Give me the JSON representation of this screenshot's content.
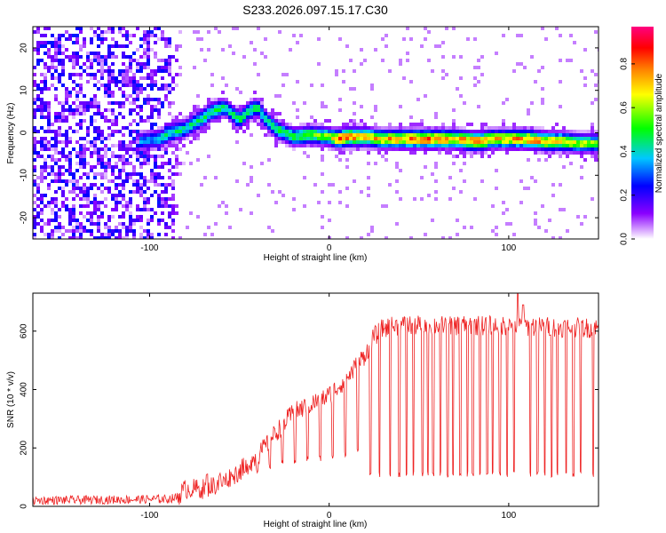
{
  "title": "S233.2026.097.15.17.C30",
  "chart_data": [
    {
      "type": "heatmap",
      "title": "S233.2026.097.15.17.C30",
      "xlabel": "Height of straight line (km)",
      "ylabel": "Frequency (Hz)",
      "xlim": [
        -165,
        150
      ],
      "ylim": [
        -25,
        25
      ],
      "xticks": [
        -100,
        0,
        100
      ],
      "yticks": [
        -20,
        -10,
        0,
        10,
        20
      ],
      "xtick_labels": [
        "-100",
        "0",
        "100"
      ],
      "ytick_labels": [
        "-20",
        "-10",
        "0",
        "10",
        "20"
      ],
      "colorbar": {
        "label": "Normalized spectral amplitude",
        "range": [
          0,
          0.97
        ],
        "ticks": [
          0.0,
          0.2,
          0.4,
          0.6,
          0.8
        ],
        "tick_labels": [
          "0.0",
          "0.2",
          "0.4",
          "0.6",
          "0.8"
        ],
        "colors": [
          "#ffffff",
          "#8a00ff",
          "#0000ff",
          "#00c8ff",
          "#00ff00",
          "#ffff00",
          "#ff8000",
          "#ff0000",
          "#ff0080"
        ]
      },
      "noise_region": {
        "x_end": -90,
        "fade_end": -80,
        "amplitude": 0.25
      },
      "ridge": {
        "x": [
          -105,
          -95,
          -88,
          -80,
          -72,
          -65,
          -58,
          -50,
          -45,
          -40,
          -35,
          -30,
          -25,
          -20,
          -10,
          0,
          5,
          10,
          20,
          30,
          40,
          50,
          60,
          70,
          80,
          85,
          90,
          100,
          110,
          120,
          130,
          140,
          148
        ],
        "freq": [
          -2,
          -1.5,
          0,
          1,
          3,
          5,
          6,
          3,
          5,
          6,
          3,
          1,
          0,
          -1,
          -0.5,
          -1,
          -1.5,
          -1,
          -1,
          -1.5,
          -1.5,
          -1.5,
          -1.5,
          -1.5,
          -2,
          -2,
          -1.5,
          -1.5,
          -1.5,
          -2,
          -2,
          -2.5,
          -2.5
        ],
        "amplitude": [
          0.35,
          0.38,
          0.45,
          0.45,
          0.48,
          0.5,
          0.45,
          0.5,
          0.5,
          0.45,
          0.45,
          0.5,
          0.5,
          0.52,
          0.55,
          0.6,
          0.85,
          0.8,
          0.72,
          0.72,
          0.78,
          0.82,
          0.82,
          0.74,
          0.8,
          0.85,
          0.72,
          0.72,
          0.78,
          0.74,
          0.7,
          0.62,
          0.58
        ]
      }
    },
    {
      "type": "line",
      "xlabel": "Height of straight line (km)",
      "ylabel": "SNR (10 * v/v)",
      "xlim": [
        -165,
        150
      ],
      "ylim": [
        0,
        730
      ],
      "xticks": [
        -100,
        0,
        100
      ],
      "yticks": [
        0,
        200,
        400,
        600
      ],
      "xtick_labels": [
        "-100",
        "0",
        "100"
      ],
      "ytick_labels": [
        "0",
        "200",
        "400",
        "600"
      ],
      "series": [
        {
          "name": "SNR",
          "color": "#ee2222",
          "envelope_x": [
            -165,
            -90,
            -85,
            -80,
            -70,
            -60,
            -50,
            -40,
            -30,
            -20,
            -10,
            0,
            10,
            20,
            25,
            30,
            40,
            60,
            80,
            100,
            120,
            150
          ],
          "envelope_y": [
            20,
            25,
            30,
            60,
            60,
            80,
            120,
            170,
            250,
            320,
            350,
            380,
            440,
            520,
            580,
            610,
            620,
            620,
            620,
            620,
            615,
            610
          ],
          "dips_x": [
            -68,
            -61,
            -54,
            -47,
            -40,
            -33,
            -26,
            -19,
            -12,
            -5,
            2,
            9,
            16,
            23,
            28,
            34,
            39,
            43,
            47,
            52,
            55,
            58,
            62,
            66,
            69,
            73,
            77,
            80,
            84,
            88,
            91,
            95,
            99,
            103,
            108,
            112,
            116,
            120,
            124,
            127,
            132,
            136,
            140,
            147
          ],
          "dip_value": 100,
          "peaks_x": [
            105,
            108
          ],
          "peaks_y": [
            730,
            690
          ],
          "noise": 25
        }
      ]
    }
  ]
}
